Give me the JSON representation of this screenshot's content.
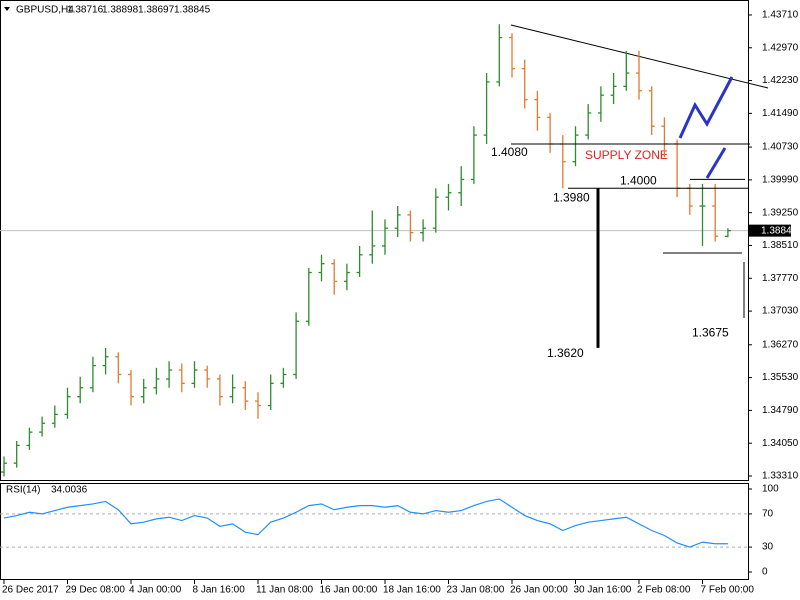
{
  "chart_data": {
    "type": "ohlc",
    "symbol": "GBPUSD,H4",
    "up_color": "#2e8b2e",
    "down_color": "#e07b30",
    "categories": [
      "26 Dec 2017",
      null,
      null,
      null,
      null,
      "29 Dec 08:00",
      null,
      null,
      null,
      null,
      "4 Jan 00:00",
      null,
      null,
      null,
      null,
      "8 Jan 16:00",
      null,
      null,
      null,
      null,
      "11 Jan 08:00",
      null,
      null,
      null,
      null,
      "16 Jan 00:00",
      null,
      null,
      null,
      null,
      "18 Jan 16:00",
      null,
      null,
      null,
      null,
      "23 Jan 08:00",
      null,
      null,
      null,
      null,
      "26 Jan 00:00",
      null,
      null,
      null,
      null,
      "30 Jan 16:00",
      null,
      null,
      null,
      null,
      "2 Feb 08:00",
      null,
      null,
      null,
      null,
      "7 Feb 00:00",
      null,
      null
    ],
    "ohlc": [
      [
        1.334,
        1.3375,
        1.333,
        1.336
      ],
      [
        1.336,
        1.341,
        1.335,
        1.34
      ],
      [
        1.34,
        1.344,
        1.339,
        1.343
      ],
      [
        1.343,
        1.3465,
        1.342,
        1.345
      ],
      [
        1.345,
        1.349,
        1.344,
        1.347
      ],
      [
        1.347,
        1.353,
        1.346,
        1.351
      ],
      [
        1.351,
        1.3555,
        1.3495,
        1.353
      ],
      [
        1.353,
        1.36,
        1.352,
        1.358
      ],
      [
        1.358,
        1.362,
        1.356,
        1.36
      ],
      [
        1.36,
        1.361,
        1.354,
        1.356
      ],
      [
        1.356,
        1.357,
        1.349,
        1.351
      ],
      [
        1.351,
        1.355,
        1.3495,
        1.353
      ],
      [
        1.353,
        1.3575,
        1.3515,
        1.355
      ],
      [
        1.355,
        1.359,
        1.353,
        1.357
      ],
      [
        1.357,
        1.3585,
        1.352,
        1.354
      ],
      [
        1.354,
        1.359,
        1.353,
        1.357
      ],
      [
        1.357,
        1.358,
        1.353,
        1.355
      ],
      [
        1.355,
        1.356,
        1.349,
        1.351
      ],
      [
        1.351,
        1.356,
        1.3495,
        1.353
      ],
      [
        1.353,
        1.3545,
        1.348,
        1.35
      ],
      [
        1.35,
        1.352,
        1.346,
        1.349
      ],
      [
        1.349,
        1.356,
        1.348,
        1.354
      ],
      [
        1.354,
        1.3575,
        1.353,
        1.356
      ],
      [
        1.356,
        1.37,
        1.355,
        1.368
      ],
      [
        1.368,
        1.38,
        1.367,
        1.379
      ],
      [
        1.379,
        1.383,
        1.377,
        1.381
      ],
      [
        1.381,
        1.382,
        1.374,
        1.377
      ],
      [
        1.377,
        1.381,
        1.375,
        1.379
      ],
      [
        1.379,
        1.385,
        1.378,
        1.383
      ],
      [
        1.383,
        1.393,
        1.381,
        1.385
      ],
      [
        1.385,
        1.391,
        1.383,
        1.389
      ],
      [
        1.389,
        1.394,
        1.387,
        1.392
      ],
      [
        1.392,
        1.393,
        1.386,
        1.388
      ],
      [
        1.388,
        1.391,
        1.386,
        1.389
      ],
      [
        1.389,
        1.398,
        1.388,
        1.396
      ],
      [
        1.396,
        1.399,
        1.393,
        1.397
      ],
      [
        1.397,
        1.403,
        1.394,
        1.4
      ],
      [
        1.4,
        1.412,
        1.399,
        1.41
      ],
      [
        1.41,
        1.424,
        1.408,
        1.422
      ],
      [
        1.422,
        1.435,
        1.421,
        1.432
      ],
      [
        1.432,
        1.433,
        1.423,
        1.425
      ],
      [
        1.425,
        1.427,
        1.416,
        1.418
      ],
      [
        1.418,
        1.42,
        1.411,
        1.414
      ],
      [
        1.414,
        1.415,
        1.406,
        1.408
      ],
      [
        1.408,
        1.41,
        1.398,
        1.404
      ],
      [
        1.404,
        1.412,
        1.403,
        1.41
      ],
      [
        1.41,
        1.417,
        1.409,
        1.415
      ],
      [
        1.415,
        1.421,
        1.413,
        1.419
      ],
      [
        1.419,
        1.424,
        1.417,
        1.421
      ],
      [
        1.421,
        1.429,
        1.42,
        1.424
      ],
      [
        1.424,
        1.429,
        1.418,
        1.42
      ],
      [
        1.42,
        1.421,
        1.41,
        1.412
      ],
      [
        1.412,
        1.414,
        1.405,
        1.408
      ],
      [
        1.408,
        1.409,
        1.396,
        1.398
      ],
      [
        1.398,
        1.399,
        1.392,
        1.394
      ],
      [
        1.394,
        1.399,
        1.385,
        1.394
      ],
      [
        1.394,
        1.399,
        1.386,
        1.3872
      ],
      [
        1.38716,
        1.38898,
        1.38697,
        1.38845
      ]
    ],
    "ylim": [
      1.3322,
      1.4398
    ],
    "yticks": [
      {
        "value": 1.4371,
        "label": "1.43710"
      },
      {
        "value": 1.4297,
        "label": "1.42970"
      },
      {
        "value": 1.4223,
        "label": "1.42230"
      },
      {
        "value": 1.4149,
        "label": "1.41490"
      },
      {
        "value": 1.4073,
        "label": "1.40730"
      },
      {
        "value": 1.3999,
        "label": "1.39990"
      },
      {
        "value": 1.3925,
        "label": "1.39250"
      },
      {
        "value": 1.3851,
        "label": "1.38510"
      },
      {
        "value": 1.3777,
        "label": "1.37770"
      },
      {
        "value": 1.3703,
        "label": "1.37030"
      },
      {
        "value": 1.3627,
        "label": "1.36270"
      },
      {
        "value": 1.3553,
        "label": "1.35530"
      },
      {
        "value": 1.3479,
        "label": "1.34790"
      },
      {
        "value": 1.3405,
        "label": "1.34050"
      },
      {
        "value": 1.3331,
        "label": "1.33310"
      }
    ],
    "levels": [
      {
        "value": 1.408,
        "label": "1.4080"
      },
      {
        "value": 1.398,
        "label": "1.3980"
      },
      {
        "value": 1.4,
        "label": "1.4000"
      },
      {
        "value": 1.362,
        "label": "1.3620"
      },
      {
        "value": 1.3675,
        "label": "1.3675"
      }
    ],
    "zone_label": "SUPPLY ZONE",
    "rsi": {
      "label": "RSI(14)",
      "color": "#1e90ff",
      "ylim": [
        0,
        100
      ],
      "yticks": [
        100,
        70,
        30,
        0
      ],
      "values": [
        65,
        68,
        72,
        70,
        74,
        78,
        80,
        82,
        85,
        75,
        58,
        60,
        64,
        66,
        62,
        68,
        65,
        55,
        58,
        48,
        45,
        60,
        65,
        72,
        80,
        82,
        75,
        78,
        80,
        80,
        78,
        80,
        72,
        70,
        74,
        72,
        74,
        80,
        85,
        88,
        78,
        68,
        62,
        58,
        50,
        56,
        60,
        62,
        64,
        66,
        58,
        50,
        44,
        35,
        30,
        36,
        34,
        34.0036
      ]
    }
  }
}
